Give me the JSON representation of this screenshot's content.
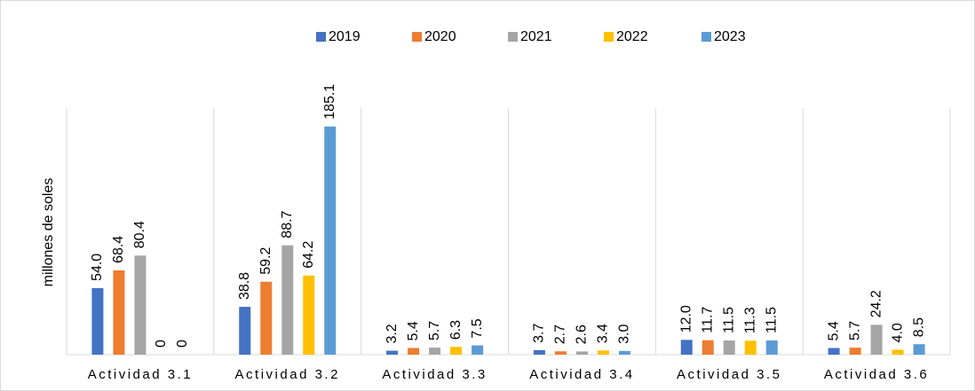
{
  "chart_data": {
    "type": "bar",
    "y_label": "millones de soles",
    "categories": [
      "Actividad 3.1",
      "Actividad 3.2",
      "Actividad 3.3",
      "Actividad 3.4",
      "Actividad 3.5",
      "Actividad 3.6"
    ],
    "series": [
      {
        "name": "2019",
        "color": "#4472c4",
        "values": [
          54.0,
          38.8,
          3.2,
          3.7,
          12.0,
          5.4
        ],
        "value_labels": [
          "54.0",
          "38.8",
          "3.2",
          "3.7",
          "12.0",
          "5.4"
        ]
      },
      {
        "name": "2020",
        "color": "#ed7d31",
        "values": [
          68.4,
          59.2,
          5.4,
          2.7,
          11.7,
          5.7
        ],
        "value_labels": [
          "68.4",
          "59.2",
          "5.4",
          "2.7",
          "11.7",
          "5.7"
        ]
      },
      {
        "name": "2021",
        "color": "#a5a5a5",
        "values": [
          80.4,
          88.7,
          5.7,
          2.6,
          11.5,
          24.2
        ],
        "value_labels": [
          "80.4",
          "88.7",
          "5.7",
          "2.6",
          "11.5",
          "24.2"
        ]
      },
      {
        "name": "2022",
        "color": "#ffc000",
        "values": [
          0,
          64.2,
          6.3,
          3.4,
          11.3,
          4.0
        ],
        "value_labels": [
          "0",
          "64.2",
          "6.3",
          "3.4",
          "11.3",
          "4.0"
        ]
      },
      {
        "name": "2023",
        "color": "#5b9bd5",
        "values": [
          0,
          185.1,
          7.5,
          3.0,
          11.5,
          8.5
        ],
        "value_labels": [
          "0",
          "185.1",
          "7.5",
          "3.0",
          "11.5",
          "8.5"
        ]
      }
    ],
    "ylim": [
      0,
      200
    ],
    "legend": "top"
  }
}
